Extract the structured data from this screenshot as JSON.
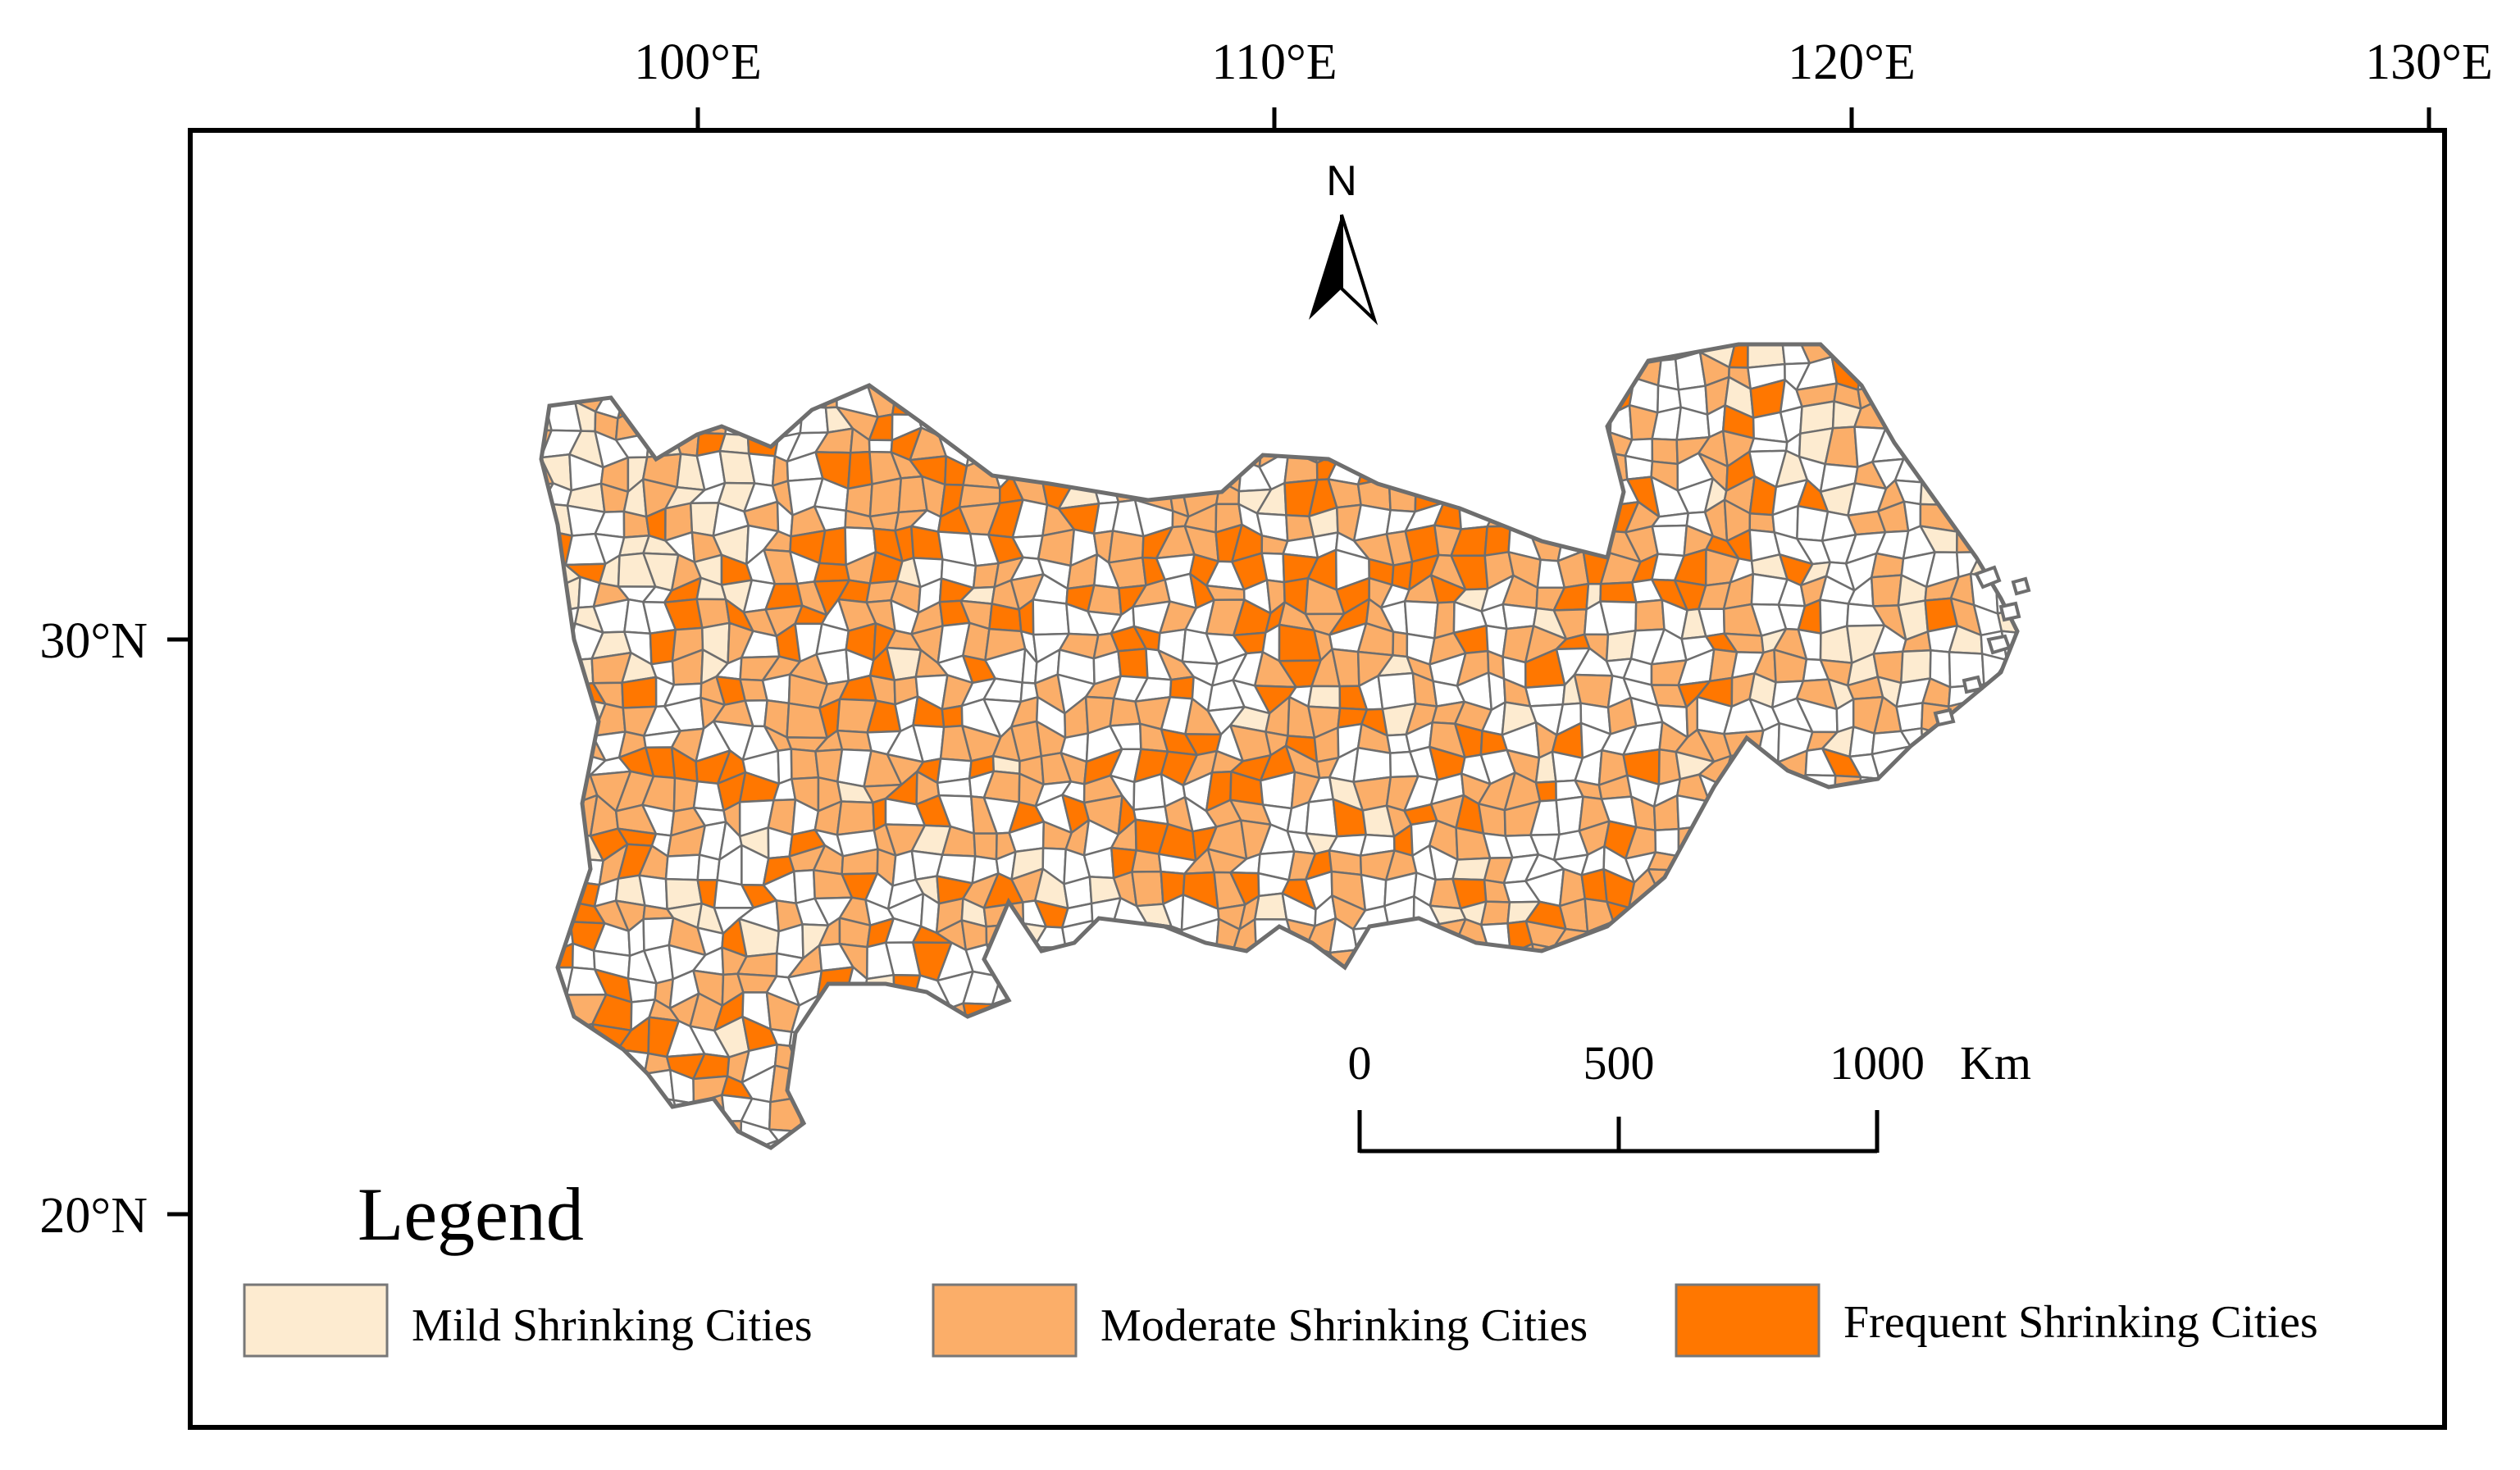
{
  "map": {
    "longitude_labels": [
      "100°E",
      "110°E",
      "120°E",
      "130°E"
    ],
    "latitude_labels": [
      "30°N",
      "20°N"
    ]
  },
  "north_arrow": {
    "label": "N",
    "icon": "north-arrow-icon"
  },
  "scale_bar": {
    "ticks": [
      "0",
      "500",
      "1000"
    ],
    "unit": "Km"
  },
  "legend": {
    "title": "Legend",
    "items": [
      {
        "label": "Mild Shrinking Cities",
        "color": "#fdebd0"
      },
      {
        "label": "Moderate Shrinking Cities",
        "color": "#fbae69"
      },
      {
        "label": "Frequent Shrinking Cities",
        "color": "#ff7700"
      }
    ]
  },
  "colors": {
    "none": "#ffffff",
    "boundary": "#6e6e6e",
    "frame": "#000000"
  }
}
